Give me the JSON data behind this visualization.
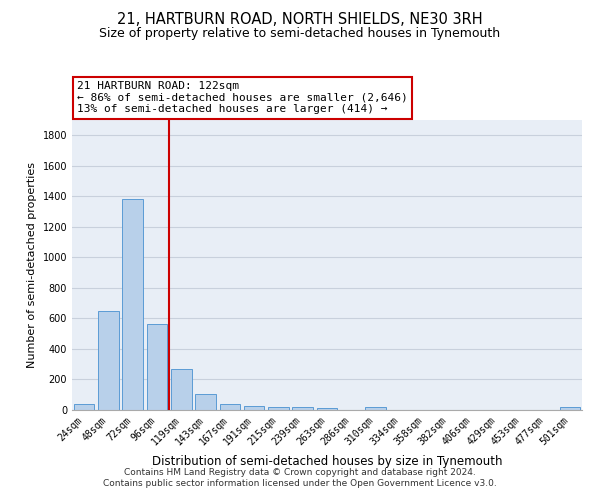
{
  "title": "21, HARTBURN ROAD, NORTH SHIELDS, NE30 3RH",
  "subtitle": "Size of property relative to semi-detached houses in Tynemouth",
  "xlabel": "Distribution of semi-detached houses by size in Tynemouth",
  "ylabel": "Number of semi-detached properties",
  "categories": [
    "24sqm",
    "48sqm",
    "72sqm",
    "96sqm",
    "119sqm",
    "143sqm",
    "167sqm",
    "191sqm",
    "215sqm",
    "239sqm",
    "263sqm",
    "286sqm",
    "310sqm",
    "334sqm",
    "358sqm",
    "382sqm",
    "406sqm",
    "429sqm",
    "453sqm",
    "477sqm",
    "501sqm"
  ],
  "values": [
    38,
    648,
    1385,
    565,
    268,
    105,
    38,
    28,
    22,
    18,
    12,
    0,
    18,
    0,
    0,
    0,
    0,
    0,
    0,
    0,
    18
  ],
  "bar_color": "#b8d0ea",
  "bar_edge_color": "#5b9bd5",
  "vline_index": 3.5,
  "annotation_text": "21 HARTBURN ROAD: 122sqm\n← 86% of semi-detached houses are smaller (2,646)\n13% of semi-detached houses are larger (414) →",
  "box_color": "#cc0000",
  "ylim": [
    0,
    1900
  ],
  "yticks": [
    0,
    200,
    400,
    600,
    800,
    1000,
    1200,
    1400,
    1600,
    1800
  ],
  "grid_color": "#c8d0dc",
  "background_color": "#e8eef6",
  "footer": "Contains HM Land Registry data © Crown copyright and database right 2024.\nContains public sector information licensed under the Open Government Licence v3.0.",
  "title_fontsize": 10.5,
  "subtitle_fontsize": 9,
  "axis_label_fontsize": 8,
  "tick_fontsize": 7,
  "annotation_fontsize": 8,
  "footer_fontsize": 6.5
}
